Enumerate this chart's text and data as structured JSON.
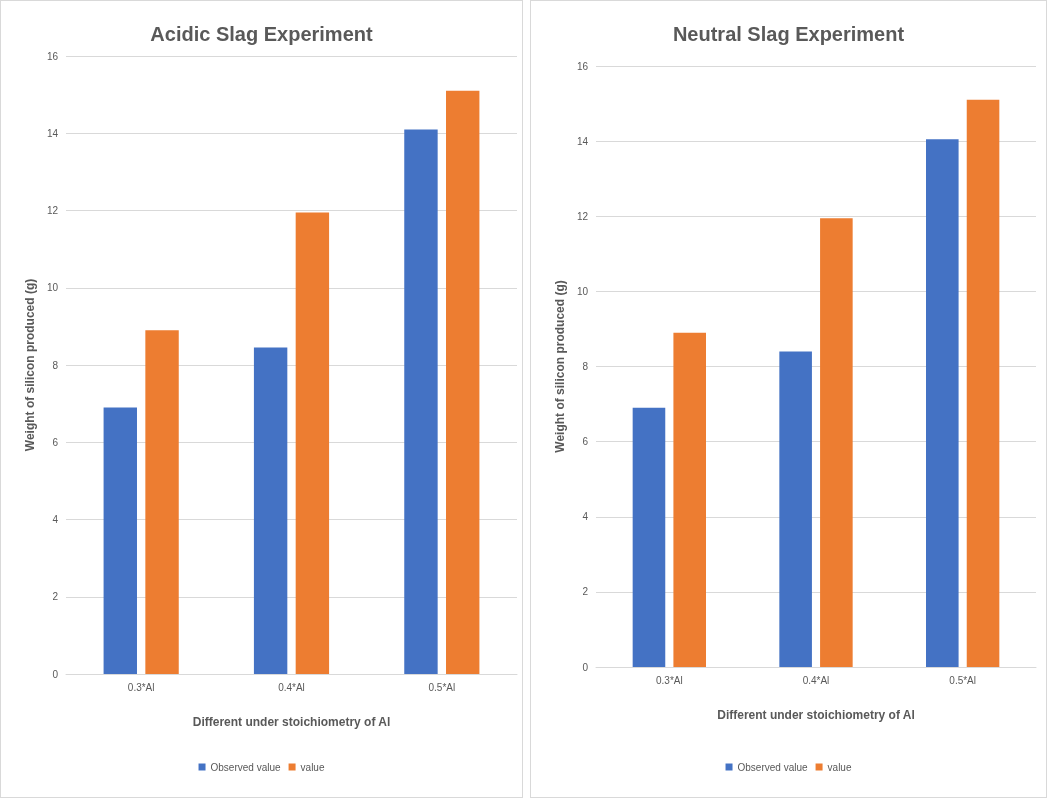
{
  "chart_data": [
    {
      "type": "bar",
      "title": "Acidic Slag Experiment",
      "xlabel": "Different under stoichiometry of Al",
      "ylabel": "Weight of silicon produced (g)",
      "categories": [
        "0.3*Al",
        "0.4*Al",
        "0.5*Al"
      ],
      "series": [
        {
          "name": "Observed value",
          "color": "#4472c4",
          "values": [
            6.9,
            8.45,
            14.1
          ]
        },
        {
          "name": "value",
          "color": "#ed7d31",
          "values": [
            8.9,
            11.95,
            15.1
          ]
        }
      ],
      "ylim": [
        0,
        16
      ],
      "yticks": [
        0,
        2,
        4,
        6,
        8,
        10,
        12,
        14,
        16
      ],
      "grid": "y",
      "legend": "bottom"
    },
    {
      "type": "bar",
      "title": "Neutral Slag Experiment",
      "xlabel": "Different under stoichiometry of Al",
      "ylabel": "Weight of silicon produced (g)",
      "categories": [
        "0.3*Al",
        "0.4*Al",
        "0.5*Al"
      ],
      "series": [
        {
          "name": "Observed value",
          "color": "#4472c4",
          "values": [
            6.9,
            8.4,
            14.05
          ]
        },
        {
          "name": "value",
          "color": "#ed7d31",
          "values": [
            8.9,
            11.95,
            15.1
          ]
        }
      ],
      "ylim": [
        0,
        16
      ],
      "yticks": [
        0,
        2,
        4,
        6,
        8,
        10,
        12,
        14,
        16
      ],
      "grid": "y",
      "legend": "bottom"
    }
  ]
}
